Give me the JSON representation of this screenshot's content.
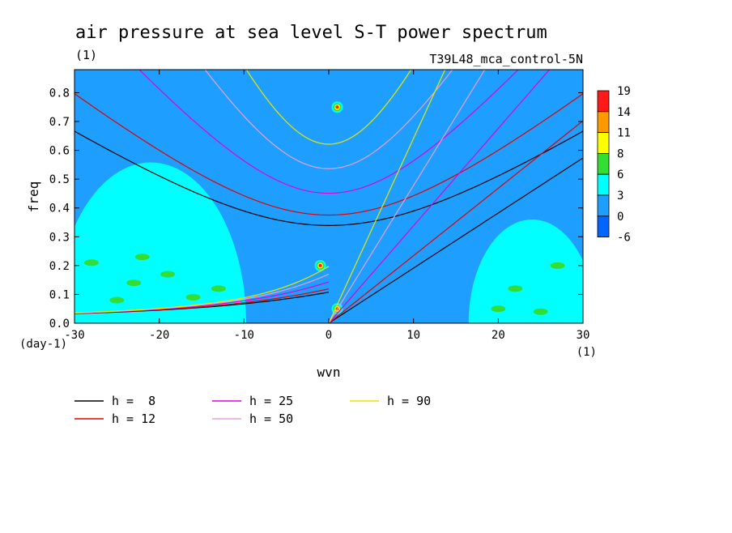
{
  "chart_data": {
    "type": "heatmap",
    "title": "air pressure at sea level S-T power spectrum",
    "units": "(1)",
    "run_label": "T39L48_mca_control-5N",
    "xlabel": "wvn",
    "ylabel": "freq",
    "x_units_label": "(1)",
    "y_units_label": "(day-1)",
    "xlim": [
      -30,
      30
    ],
    "ylim": [
      0,
      0.88
    ],
    "x_ticks": [
      -30,
      -20,
      -10,
      0,
      10,
      20,
      30
    ],
    "x_tick_labels": [
      "-30",
      "-20",
      "-10",
      "0",
      "10",
      "20",
      "30"
    ],
    "y_ticks": [
      0.0,
      0.1,
      0.2,
      0.3,
      0.4,
      0.5,
      0.6,
      0.7,
      0.8
    ],
    "y_tick_labels": [
      "0.0",
      "0.1",
      "0.2",
      "0.3",
      "0.4",
      "0.5",
      "0.6",
      "0.7",
      "0.8"
    ],
    "colorbar": {
      "levels": [
        "19",
        "14",
        "11",
        "8",
        "6",
        "3",
        "0",
        "-6"
      ],
      "colors": [
        "#ff1a1a",
        "#ff9900",
        "#ffff00",
        "#33dd33",
        "#00ffff",
        "#1e9fff",
        "#0066ff"
      ]
    },
    "background_color": "#1e9fff",
    "filled_regions": [
      {
        "level": "3",
        "color": "#00ffff",
        "region": "lower-left",
        "x": [
          -30,
          -12
        ],
        "y": [
          0.0,
          0.62
        ]
      },
      {
        "level": "3",
        "color": "#00ffff",
        "region": "lower-right",
        "x": [
          18,
          30
        ],
        "y": [
          0.0,
          0.4
        ]
      },
      {
        "level": "6",
        "color": "#33dd33",
        "note": "patches inside cyan regions"
      },
      {
        "level": "19",
        "color": "#ff1a1a",
        "peaks": [
          {
            "x": 1,
            "y": 0.75
          },
          {
            "x": -1,
            "y": 0.2
          },
          {
            "x": 1,
            "y": 0.05
          }
        ]
      }
    ],
    "series": [
      {
        "name": "h =  8",
        "color": "#000000"
      },
      {
        "name": "h = 12",
        "color": "#e00000"
      },
      {
        "name": "h = 25",
        "color": "#dd00dd"
      },
      {
        "name": "h = 50",
        "color": "#e6a0e6"
      },
      {
        "name": "h = 90",
        "color": "#e6e600"
      }
    ],
    "legend_position": "bottom"
  }
}
